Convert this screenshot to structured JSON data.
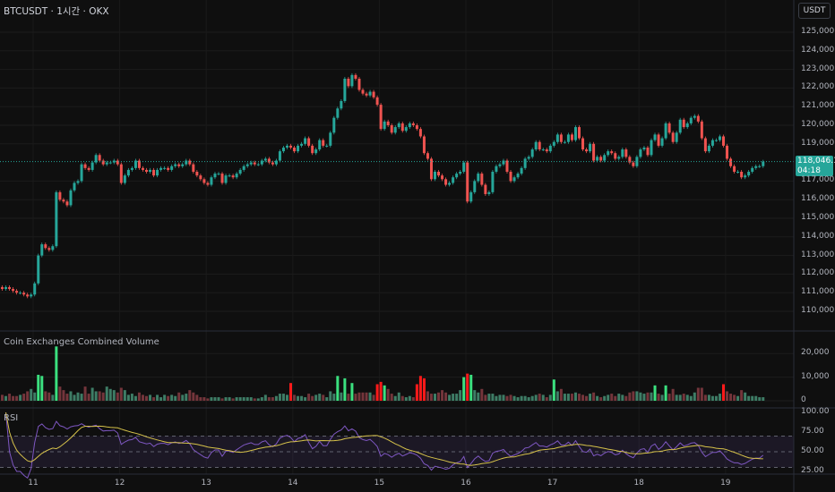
{
  "header": {
    "symbol_title": "BTCUSDT · 1시간 · OKX",
    "currency_button": "USDT"
  },
  "price_tag": {
    "price": "118,046.1",
    "countdown": "04:18",
    "color": "#26a69a"
  },
  "panes": {
    "volume_label": "Coin Exchanges Combined Volume",
    "rsi_label": "RSI"
  },
  "colors": {
    "up": "#26a69a",
    "down": "#ef5350",
    "volume_up": "#3e7d66",
    "volume_down": "#74353b",
    "volume_up_strong": "#3be07f",
    "volume_down_strong": "#ff1a1a",
    "rsi": "#7e57c2",
    "rsi_ma": "#d6c24a",
    "background": "#0f0f0f"
  },
  "chart_data": {
    "type": "candlestick",
    "timeframe": "1h",
    "price_axis_ticks": [
      "125,000.0",
      "124,000.0",
      "123,000.0",
      "122,000.0",
      "121,000.0",
      "120,000.0",
      "119,000.0",
      "117,000.0",
      "116,000.0",
      "115,000.0",
      "114,000.0",
      "113,000.0",
      "112,000.0",
      "111,000.0",
      "110,000.0"
    ],
    "price_range": [
      110000,
      125000
    ],
    "volume_axis_ticks": [
      "20,000",
      "10,000",
      "0"
    ],
    "rsi_axis_ticks": [
      "100.00",
      "75.00",
      "50.00",
      "25.00"
    ],
    "rsi_bands": [
      30,
      50,
      70
    ],
    "x_tick_labels": [
      "11",
      "12",
      "13",
      "14",
      "15",
      "16",
      "17",
      "18",
      "19"
    ],
    "current_price": 118046.1,
    "closes": [
      111200,
      111300,
      111200,
      111100,
      111000,
      111000,
      110900,
      110800,
      110900,
      111500,
      113000,
      113600,
      113400,
      113300,
      113500,
      116400,
      116000,
      115900,
      115700,
      116500,
      116900,
      117000,
      117900,
      117700,
      117600,
      118000,
      118400,
      118100,
      117900,
      118000,
      118000,
      118100,
      117900,
      116900,
      117300,
      117600,
      117700,
      118100,
      117700,
      117600,
      117500,
      117600,
      117300,
      117600,
      117700,
      117700,
      117600,
      117800,
      117900,
      117800,
      117900,
      118100,
      117900,
      117500,
      117300,
      117100,
      116900,
      116800,
      117200,
      117400,
      117400,
      116900,
      117300,
      117300,
      117200,
      117400,
      117600,
      117800,
      117900,
      118000,
      117900,
      117900,
      118100,
      118200,
      118000,
      117900,
      118100,
      118600,
      118800,
      118900,
      118800,
      118600,
      118900,
      119000,
      119300,
      118900,
      118500,
      118700,
      119200,
      118900,
      118900,
      119600,
      120400,
      120900,
      121300,
      122500,
      122100,
      122700,
      122500,
      121900,
      121700,
      121600,
      121800,
      121500,
      121100,
      119800,
      120200,
      120000,
      119600,
      119900,
      120100,
      119700,
      119900,
      120100,
      120000,
      119800,
      119400,
      118500,
      118200,
      117100,
      117500,
      117300,
      117100,
      116800,
      116900,
      117200,
      117400,
      117500,
      118000,
      115900,
      116400,
      117000,
      117400,
      116800,
      116300,
      116400,
      117500,
      117800,
      117900,
      118100,
      117500,
      117000,
      117200,
      117400,
      117700,
      118200,
      118300,
      118700,
      119100,
      118700,
      118700,
      118600,
      118900,
      119100,
      119500,
      119100,
      119100,
      119500,
      119200,
      119900,
      119300,
      118700,
      118600,
      119000,
      118100,
      118300,
      118100,
      118400,
      118600,
      118500,
      118200,
      118300,
      118700,
      118300,
      118000,
      117800,
      118300,
      118700,
      118800,
      118400,
      119200,
      119500,
      118900,
      119300,
      120100,
      119600,
      119100,
      119600,
      120300,
      119900,
      120100,
      120400,
      120500,
      120200,
      119300,
      118600,
      118900,
      119200,
      119200,
      119400,
      118900,
      118200,
      117800,
      117500,
      117500,
      117200,
      117300,
      117500,
      117700,
      117800,
      117800,
      118046.1
    ],
    "volumes": [
      2500,
      2000,
      3000,
      2000,
      2000,
      2500,
      3000,
      4000,
      5000,
      3500,
      11000,
      10500,
      4000,
      3500,
      2500,
      23000,
      6000,
      4500,
      3000,
      4000,
      2500,
      3500,
      3000,
      6000,
      3000,
      5500,
      4000,
      4000,
      3500,
      6000,
      5000,
      4500,
      3500,
      5500,
      4500,
      2500,
      3000,
      2000,
      3500,
      2500,
      2000,
      2500,
      1500,
      2500,
      1500,
      2500,
      2000,
      2500,
      2000,
      3500,
      2500,
      3000,
      4500,
      3500,
      2500,
      1500,
      1500,
      1000,
      1500,
      1500,
      1500,
      1000,
      1500,
      1500,
      1000,
      1500,
      1500,
      1500,
      1500,
      1500,
      1000,
      1000,
      1500,
      2500,
      1500,
      1500,
      2000,
      3000,
      3000,
      2500,
      7500,
      2500,
      2000,
      2000,
      1500,
      3000,
      2000,
      2500,
      3000,
      2500,
      1500,
      4000,
      3000,
      10500,
      3500,
      9500,
      3000,
      7500,
      3000,
      3500,
      3500,
      3500,
      3500,
      2500,
      7000,
      8000,
      6500,
      5000,
      3000,
      2000,
      3500,
      2000,
      1500,
      2000,
      1500,
      7000,
      10500,
      9500,
      4000,
      3000,
      3000,
      3500,
      4500,
      3500,
      2500,
      3000,
      3000,
      4500,
      10000,
      11500,
      11000,
      4500,
      3500,
      5000,
      2500,
      3000,
      3000,
      2000,
      2500,
      2500,
      2000,
      2500,
      2000,
      1500,
      2000,
      2000,
      1500,
      2000,
      2500,
      3000,
      2500,
      1500,
      2500,
      9000,
      4000,
      5000,
      3000,
      3000,
      3000,
      3500,
      3000,
      2500,
      2000,
      3000,
      3500,
      2000,
      1500,
      2000,
      2500,
      3000,
      2000,
      3000,
      2500,
      2000,
      3500,
      4000,
      4000,
      3500,
      3000,
      3500,
      3500,
      6500,
      3000,
      2500,
      6500,
      3000,
      5000,
      2500,
      2500,
      3000,
      2500,
      2000,
      3500,
      5500,
      5500,
      2500,
      2500,
      2000,
      2000,
      3000,
      7000,
      4000,
      3000,
      2500,
      2000,
      4500,
      3500,
      2000,
      2000,
      2000,
      1500,
      1500
    ]
  }
}
